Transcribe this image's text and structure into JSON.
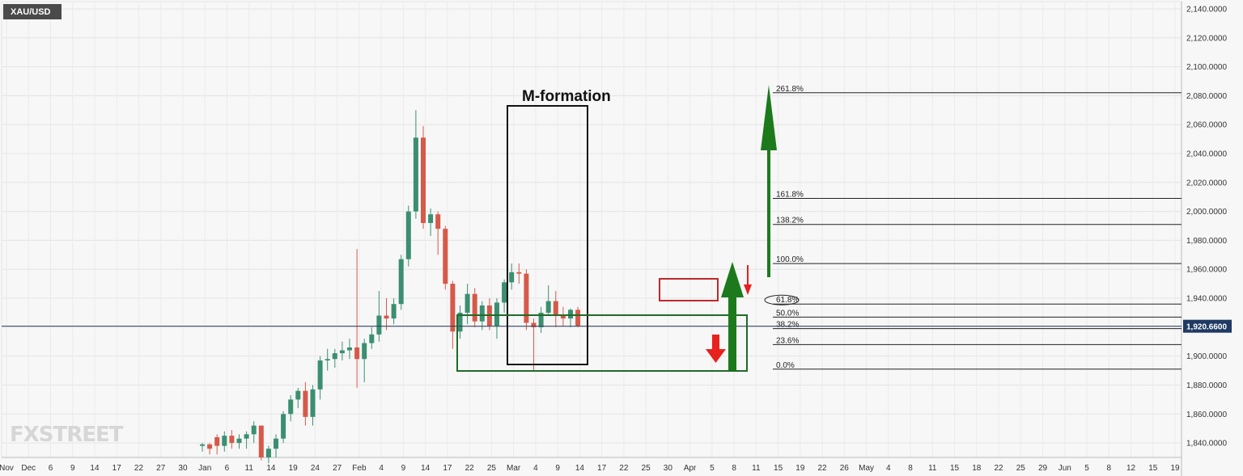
{
  "chart_data": {
    "type": "candlestick",
    "symbol": "XAU/USD",
    "current_price_label": "1,920.6600",
    "current_price": 1920.66,
    "annotation_title": "M-formation",
    "watermark": "FXSTREET",
    "ylim": [
      1830,
      2145
    ],
    "y_ticks": [
      {
        "value": 2140,
        "label": "2,140.0000"
      },
      {
        "value": 2120,
        "label": "2,120.0000"
      },
      {
        "value": 2100,
        "label": "2,100.0000"
      },
      {
        "value": 2080,
        "label": "2,080.0000"
      },
      {
        "value": 2060,
        "label": "2,060.0000"
      },
      {
        "value": 2040,
        "label": "2,040.0000"
      },
      {
        "value": 2020,
        "label": "2,020.0000"
      },
      {
        "value": 2000,
        "label": "2,000.0000"
      },
      {
        "value": 1980,
        "label": "1,980.0000"
      },
      {
        "value": 1960,
        "label": "1,960.0000"
      },
      {
        "value": 1940,
        "label": "1,940.0000"
      },
      {
        "value": 1920,
        "label": "1,920.0000"
      },
      {
        "value": 1900,
        "label": "1,900.0000"
      },
      {
        "value": 1880,
        "label": "1,880.0000"
      },
      {
        "value": 1860,
        "label": "1,860.0000"
      },
      {
        "value": 1840,
        "label": "1,840.0000"
      }
    ],
    "x_ticks": [
      "Nov",
      "Dec",
      "6",
      "9",
      "14",
      "17",
      "22",
      "27",
      "30",
      "Jan",
      "6",
      "11",
      "14",
      "19",
      "24",
      "27",
      "Feb",
      "4",
      "9",
      "14",
      "17",
      "22",
      "25",
      "Mar",
      "4",
      "9",
      "14",
      "17",
      "22",
      "25",
      "30",
      "Apr",
      "5",
      "8",
      "11",
      "15",
      "19",
      "22",
      "26",
      "May",
      "4",
      "8",
      "11",
      "15",
      "18",
      "22",
      "25",
      "29",
      "Jun",
      "5",
      "8",
      "12",
      "15",
      "19"
    ],
    "fib_levels": [
      {
        "label": "261.8%",
        "value": 2082
      },
      {
        "label": "161.8%",
        "value": 2009
      },
      {
        "label": "138.2%",
        "value": 1991
      },
      {
        "label": "100.0%",
        "value": 1964
      },
      {
        "label": "61.8%",
        "value": 1936
      },
      {
        "label": "50.0%",
        "value": 1927
      },
      {
        "label": "38.2%",
        "value": 1919
      },
      {
        "label": "23.6%",
        "value": 1908
      },
      {
        "label": "0.0%",
        "value": 1891
      }
    ],
    "candles": [
      {
        "o": 1838,
        "h": 1840,
        "l": 1834,
        "c": 1839
      },
      {
        "o": 1839,
        "h": 1840,
        "l": 1832,
        "c": 1836
      },
      {
        "o": 1844,
        "h": 1846,
        "l": 1832,
        "c": 1838
      },
      {
        "o": 1838,
        "h": 1848,
        "l": 1834,
        "c": 1845
      },
      {
        "o": 1845,
        "h": 1849,
        "l": 1836,
        "c": 1840
      },
      {
        "o": 1840,
        "h": 1846,
        "l": 1836,
        "c": 1843
      },
      {
        "o": 1843,
        "h": 1848,
        "l": 1836,
        "c": 1846
      },
      {
        "o": 1846,
        "h": 1855,
        "l": 1840,
        "c": 1852
      },
      {
        "o": 1852,
        "h": 1852,
        "l": 1828,
        "c": 1830
      },
      {
        "o": 1830,
        "h": 1838,
        "l": 1826,
        "c": 1836
      },
      {
        "o": 1836,
        "h": 1846,
        "l": 1830,
        "c": 1843
      },
      {
        "o": 1843,
        "h": 1862,
        "l": 1840,
        "c": 1860
      },
      {
        "o": 1860,
        "h": 1873,
        "l": 1855,
        "c": 1870
      },
      {
        "o": 1870,
        "h": 1878,
        "l": 1864,
        "c": 1876
      },
      {
        "o": 1876,
        "h": 1882,
        "l": 1852,
        "c": 1858
      },
      {
        "o": 1858,
        "h": 1880,
        "l": 1852,
        "c": 1877
      },
      {
        "o": 1877,
        "h": 1900,
        "l": 1870,
        "c": 1897
      },
      {
        "o": 1897,
        "h": 1905,
        "l": 1890,
        "c": 1898
      },
      {
        "o": 1898,
        "h": 1905,
        "l": 1892,
        "c": 1902
      },
      {
        "o": 1902,
        "h": 1910,
        "l": 1897,
        "c": 1904
      },
      {
        "o": 1904,
        "h": 1912,
        "l": 1898,
        "c": 1906
      },
      {
        "o": 1906,
        "h": 1974,
        "l": 1878,
        "c": 1898
      },
      {
        "o": 1898,
        "h": 1912,
        "l": 1882,
        "c": 1909
      },
      {
        "o": 1909,
        "h": 1920,
        "l": 1905,
        "c": 1915
      },
      {
        "o": 1915,
        "h": 1945,
        "l": 1910,
        "c": 1928
      },
      {
        "o": 1928,
        "h": 1940,
        "l": 1918,
        "c": 1926
      },
      {
        "o": 1926,
        "h": 1940,
        "l": 1922,
        "c": 1936
      },
      {
        "o": 1936,
        "h": 1970,
        "l": 1932,
        "c": 1967
      },
      {
        "o": 1967,
        "h": 2004,
        "l": 1962,
        "c": 2000
      },
      {
        "o": 2000,
        "h": 2070,
        "l": 1995,
        "c": 2051
      },
      {
        "o": 2051,
        "h": 2059,
        "l": 1988,
        "c": 1992
      },
      {
        "o": 1992,
        "h": 2002,
        "l": 1983,
        "c": 1998
      },
      {
        "o": 1998,
        "h": 2000,
        "l": 1970,
        "c": 1988
      },
      {
        "o": 1988,
        "h": 1990,
        "l": 1946,
        "c": 1950
      },
      {
        "o": 1950,
        "h": 1952,
        "l": 1905,
        "c": 1917
      },
      {
        "o": 1917,
        "h": 1935,
        "l": 1912,
        "c": 1930
      },
      {
        "o": 1930,
        "h": 1950,
        "l": 1922,
        "c": 1943
      },
      {
        "o": 1943,
        "h": 1947,
        "l": 1920,
        "c": 1924
      },
      {
        "o": 1924,
        "h": 1938,
        "l": 1918,
        "c": 1935
      },
      {
        "o": 1935,
        "h": 1940,
        "l": 1918,
        "c": 1921
      },
      {
        "o": 1921,
        "h": 1940,
        "l": 1912,
        "c": 1937
      },
      {
        "o": 1937,
        "h": 1953,
        "l": 1930,
        "c": 1951
      },
      {
        "o": 1951,
        "h": 1964,
        "l": 1946,
        "c": 1958
      },
      {
        "o": 1958,
        "h": 1964,
        "l": 1950,
        "c": 1957
      },
      {
        "o": 1957,
        "h": 1960,
        "l": 1918,
        "c": 1923
      },
      {
        "o": 1923,
        "h": 1926,
        "l": 1890,
        "c": 1920
      },
      {
        "o": 1920,
        "h": 1934,
        "l": 1916,
        "c": 1930
      },
      {
        "o": 1930,
        "h": 1949,
        "l": 1928,
        "c": 1938
      },
      {
        "o": 1938,
        "h": 1945,
        "l": 1920,
        "c": 1928
      },
      {
        "o": 1928,
        "h": 1934,
        "l": 1921,
        "c": 1926
      },
      {
        "o": 1926,
        "h": 1933,
        "l": 1920,
        "c": 1932
      },
      {
        "o": 1932,
        "h": 1934,
        "l": 1920,
        "c": 1921
      }
    ]
  }
}
